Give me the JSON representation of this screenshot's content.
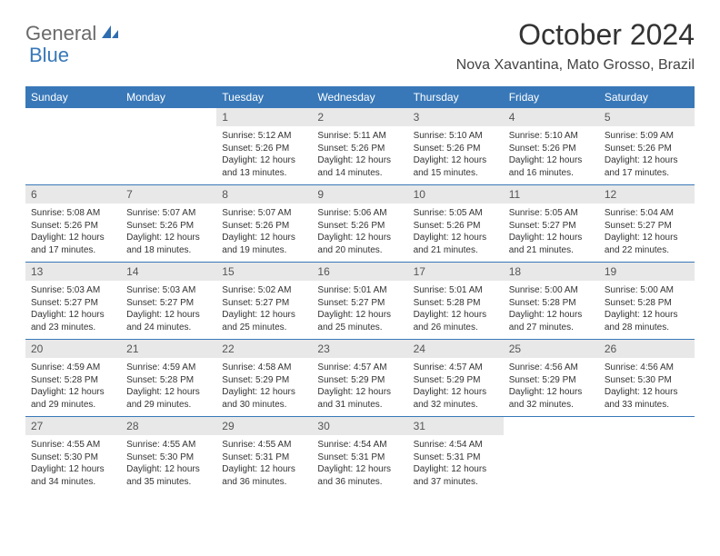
{
  "brand": {
    "part1": "General",
    "part2": "Blue"
  },
  "title": "October 2024",
  "location": "Nova Xavantina, Mato Grosso, Brazil",
  "colors": {
    "header_bg": "#3878b8",
    "num_bg": "#e8e8e8",
    "text": "#333333",
    "brand_gray": "#6a6a6a",
    "brand_blue": "#3878b8"
  },
  "dayHeaders": [
    "Sunday",
    "Monday",
    "Tuesday",
    "Wednesday",
    "Thursday",
    "Friday",
    "Saturday"
  ],
  "weeks": [
    [
      null,
      null,
      {
        "n": "1",
        "sr": "5:12 AM",
        "ss": "5:26 PM",
        "dl": "12 hours and 13 minutes."
      },
      {
        "n": "2",
        "sr": "5:11 AM",
        "ss": "5:26 PM",
        "dl": "12 hours and 14 minutes."
      },
      {
        "n": "3",
        "sr": "5:10 AM",
        "ss": "5:26 PM",
        "dl": "12 hours and 15 minutes."
      },
      {
        "n": "4",
        "sr": "5:10 AM",
        "ss": "5:26 PM",
        "dl": "12 hours and 16 minutes."
      },
      {
        "n": "5",
        "sr": "5:09 AM",
        "ss": "5:26 PM",
        "dl": "12 hours and 17 minutes."
      }
    ],
    [
      {
        "n": "6",
        "sr": "5:08 AM",
        "ss": "5:26 PM",
        "dl": "12 hours and 17 minutes."
      },
      {
        "n": "7",
        "sr": "5:07 AM",
        "ss": "5:26 PM",
        "dl": "12 hours and 18 minutes."
      },
      {
        "n": "8",
        "sr": "5:07 AM",
        "ss": "5:26 PM",
        "dl": "12 hours and 19 minutes."
      },
      {
        "n": "9",
        "sr": "5:06 AM",
        "ss": "5:26 PM",
        "dl": "12 hours and 20 minutes."
      },
      {
        "n": "10",
        "sr": "5:05 AM",
        "ss": "5:26 PM",
        "dl": "12 hours and 21 minutes."
      },
      {
        "n": "11",
        "sr": "5:05 AM",
        "ss": "5:27 PM",
        "dl": "12 hours and 21 minutes."
      },
      {
        "n": "12",
        "sr": "5:04 AM",
        "ss": "5:27 PM",
        "dl": "12 hours and 22 minutes."
      }
    ],
    [
      {
        "n": "13",
        "sr": "5:03 AM",
        "ss": "5:27 PM",
        "dl": "12 hours and 23 minutes."
      },
      {
        "n": "14",
        "sr": "5:03 AM",
        "ss": "5:27 PM",
        "dl": "12 hours and 24 minutes."
      },
      {
        "n": "15",
        "sr": "5:02 AM",
        "ss": "5:27 PM",
        "dl": "12 hours and 25 minutes."
      },
      {
        "n": "16",
        "sr": "5:01 AM",
        "ss": "5:27 PM",
        "dl": "12 hours and 25 minutes."
      },
      {
        "n": "17",
        "sr": "5:01 AM",
        "ss": "5:28 PM",
        "dl": "12 hours and 26 minutes."
      },
      {
        "n": "18",
        "sr": "5:00 AM",
        "ss": "5:28 PM",
        "dl": "12 hours and 27 minutes."
      },
      {
        "n": "19",
        "sr": "5:00 AM",
        "ss": "5:28 PM",
        "dl": "12 hours and 28 minutes."
      }
    ],
    [
      {
        "n": "20",
        "sr": "4:59 AM",
        "ss": "5:28 PM",
        "dl": "12 hours and 29 minutes."
      },
      {
        "n": "21",
        "sr": "4:59 AM",
        "ss": "5:28 PM",
        "dl": "12 hours and 29 minutes."
      },
      {
        "n": "22",
        "sr": "4:58 AM",
        "ss": "5:29 PM",
        "dl": "12 hours and 30 minutes."
      },
      {
        "n": "23",
        "sr": "4:57 AM",
        "ss": "5:29 PM",
        "dl": "12 hours and 31 minutes."
      },
      {
        "n": "24",
        "sr": "4:57 AM",
        "ss": "5:29 PM",
        "dl": "12 hours and 32 minutes."
      },
      {
        "n": "25",
        "sr": "4:56 AM",
        "ss": "5:29 PM",
        "dl": "12 hours and 32 minutes."
      },
      {
        "n": "26",
        "sr": "4:56 AM",
        "ss": "5:30 PM",
        "dl": "12 hours and 33 minutes."
      }
    ],
    [
      {
        "n": "27",
        "sr": "4:55 AM",
        "ss": "5:30 PM",
        "dl": "12 hours and 34 minutes."
      },
      {
        "n": "28",
        "sr": "4:55 AM",
        "ss": "5:30 PM",
        "dl": "12 hours and 35 minutes."
      },
      {
        "n": "29",
        "sr": "4:55 AM",
        "ss": "5:31 PM",
        "dl": "12 hours and 36 minutes."
      },
      {
        "n": "30",
        "sr": "4:54 AM",
        "ss": "5:31 PM",
        "dl": "12 hours and 36 minutes."
      },
      {
        "n": "31",
        "sr": "4:54 AM",
        "ss": "5:31 PM",
        "dl": "12 hours and 37 minutes."
      },
      null,
      null
    ]
  ]
}
